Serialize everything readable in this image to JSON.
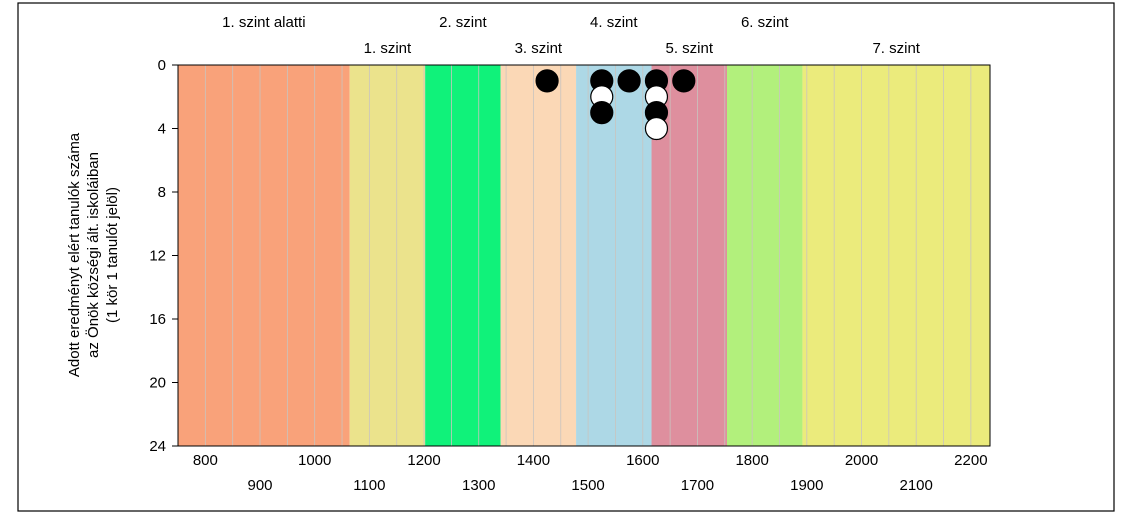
{
  "chart_data": {
    "type": "scatter",
    "ylabel_lines": [
      "Adott eredményt elért tanulók száma",
      "az Önök községi ált. iskoláiban",
      "(1 kör 1 tanulót jelöl)"
    ],
    "xlim": [
      750,
      2235
    ],
    "ylim": [
      0,
      24
    ],
    "y_inverted": true,
    "y_ticks": [
      0,
      4,
      8,
      12,
      16,
      20,
      24
    ],
    "x_ticks_row1": [
      800,
      1000,
      1200,
      1400,
      1600,
      1800,
      2000,
      2200
    ],
    "x_ticks_row2": [
      900,
      1100,
      1300,
      1500,
      1700,
      1900,
      2100
    ],
    "levels": [
      {
        "label": "1. szint alatti",
        "start": 750,
        "end": 1064,
        "color": "#f9a27a",
        "row": 1
      },
      {
        "label": "1. szint",
        "start": 1064,
        "end": 1202,
        "color": "#ebe38c",
        "row": 2
      },
      {
        "label": "2. szint",
        "start": 1202,
        "end": 1340,
        "color": "#10f27a",
        "row": 1
      },
      {
        "label": "3. szint",
        "start": 1340,
        "end": 1478,
        "color": "#fbd8b6",
        "row": 2
      },
      {
        "label": "4. szint",
        "start": 1478,
        "end": 1616,
        "color": "#add8e6",
        "row": 1
      },
      {
        "label": "5. szint",
        "start": 1616,
        "end": 1754,
        "color": "#de8f9e",
        "row": 2
      },
      {
        "label": "6. szint",
        "start": 1754,
        "end": 1892,
        "color": "#b2f07c",
        "row": 1
      },
      {
        "label": "7. szint",
        "start": 1892,
        "end": 2235,
        "color": "#ebeb7c",
        "row": 2
      }
    ],
    "points": [
      {
        "x": 1425,
        "y": 1,
        "fill": "black"
      },
      {
        "x": 1525,
        "y": 1,
        "fill": "black"
      },
      {
        "x": 1525,
        "y": 2,
        "fill": "white"
      },
      {
        "x": 1525,
        "y": 3,
        "fill": "black"
      },
      {
        "x": 1575,
        "y": 1,
        "fill": "black"
      },
      {
        "x": 1625,
        "y": 1,
        "fill": "black"
      },
      {
        "x": 1625,
        "y": 2,
        "fill": "white"
      },
      {
        "x": 1625,
        "y": 3,
        "fill": "black"
      },
      {
        "x": 1625,
        "y": 4,
        "fill": "white"
      },
      {
        "x": 1675,
        "y": 1,
        "fill": "black"
      }
    ]
  }
}
